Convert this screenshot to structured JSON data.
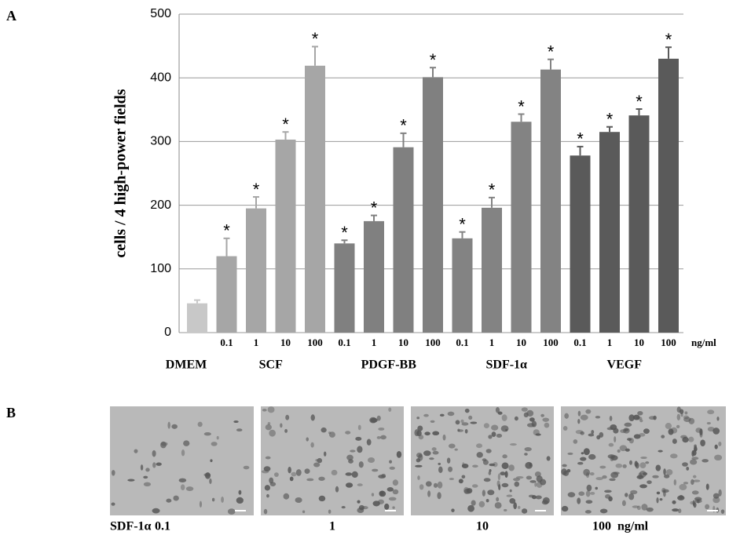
{
  "chart_data": {
    "type": "bar",
    "panel_label": "A",
    "y_label": "cells / 4 high-power fields",
    "x_unit": "ng/ml",
    "ylim": [
      0,
      500
    ],
    "yticks": [
      0,
      100,
      200,
      300,
      400,
      500
    ],
    "grid": true,
    "series": [
      {
        "name": "DMEM",
        "color": "#c8c8c8",
        "doses": [
          null
        ],
        "values": [
          46
        ],
        "errors": [
          5
        ],
        "markers": [
          null
        ]
      },
      {
        "name": "SCF",
        "color": "#a6a6a6",
        "doses": [
          "0.1",
          "1",
          "10",
          "100"
        ],
        "values": [
          120,
          195,
          303,
          419
        ],
        "errors": [
          28,
          18,
          12,
          30
        ],
        "markers": [
          "*",
          "*",
          "*",
          "*"
        ]
      },
      {
        "name": "PDGF-BB",
        "color": "#808080",
        "doses": [
          "0.1",
          "1",
          "10",
          "100"
        ],
        "values": [
          140,
          175,
          291,
          401
        ],
        "errors": [
          5,
          9,
          22,
          15
        ],
        "markers": [
          "*",
          "*",
          "*",
          "*"
        ]
      },
      {
        "name": "SDF-1α",
        "color": "#838383",
        "doses": [
          "0.1",
          "1",
          "10",
          "100"
        ],
        "values": [
          148,
          196,
          331,
          413
        ],
        "errors": [
          10,
          16,
          12,
          16
        ],
        "markers": [
          "*",
          "*",
          "*",
          "*"
        ]
      },
      {
        "name": "VEGF",
        "color": "#5a5a5a",
        "doses": [
          "0.1",
          "1",
          "10",
          "100"
        ],
        "values": [
          278,
          315,
          341,
          430
        ],
        "errors": [
          14,
          8,
          10,
          18
        ],
        "markers": [
          "*",
          "*",
          "*",
          "*"
        ]
      }
    ]
  },
  "panel_b": {
    "label": "B",
    "row_label": "SDF-1α",
    "captions": [
      "0.1",
      "1",
      "10",
      "100  ng/ml"
    ]
  }
}
